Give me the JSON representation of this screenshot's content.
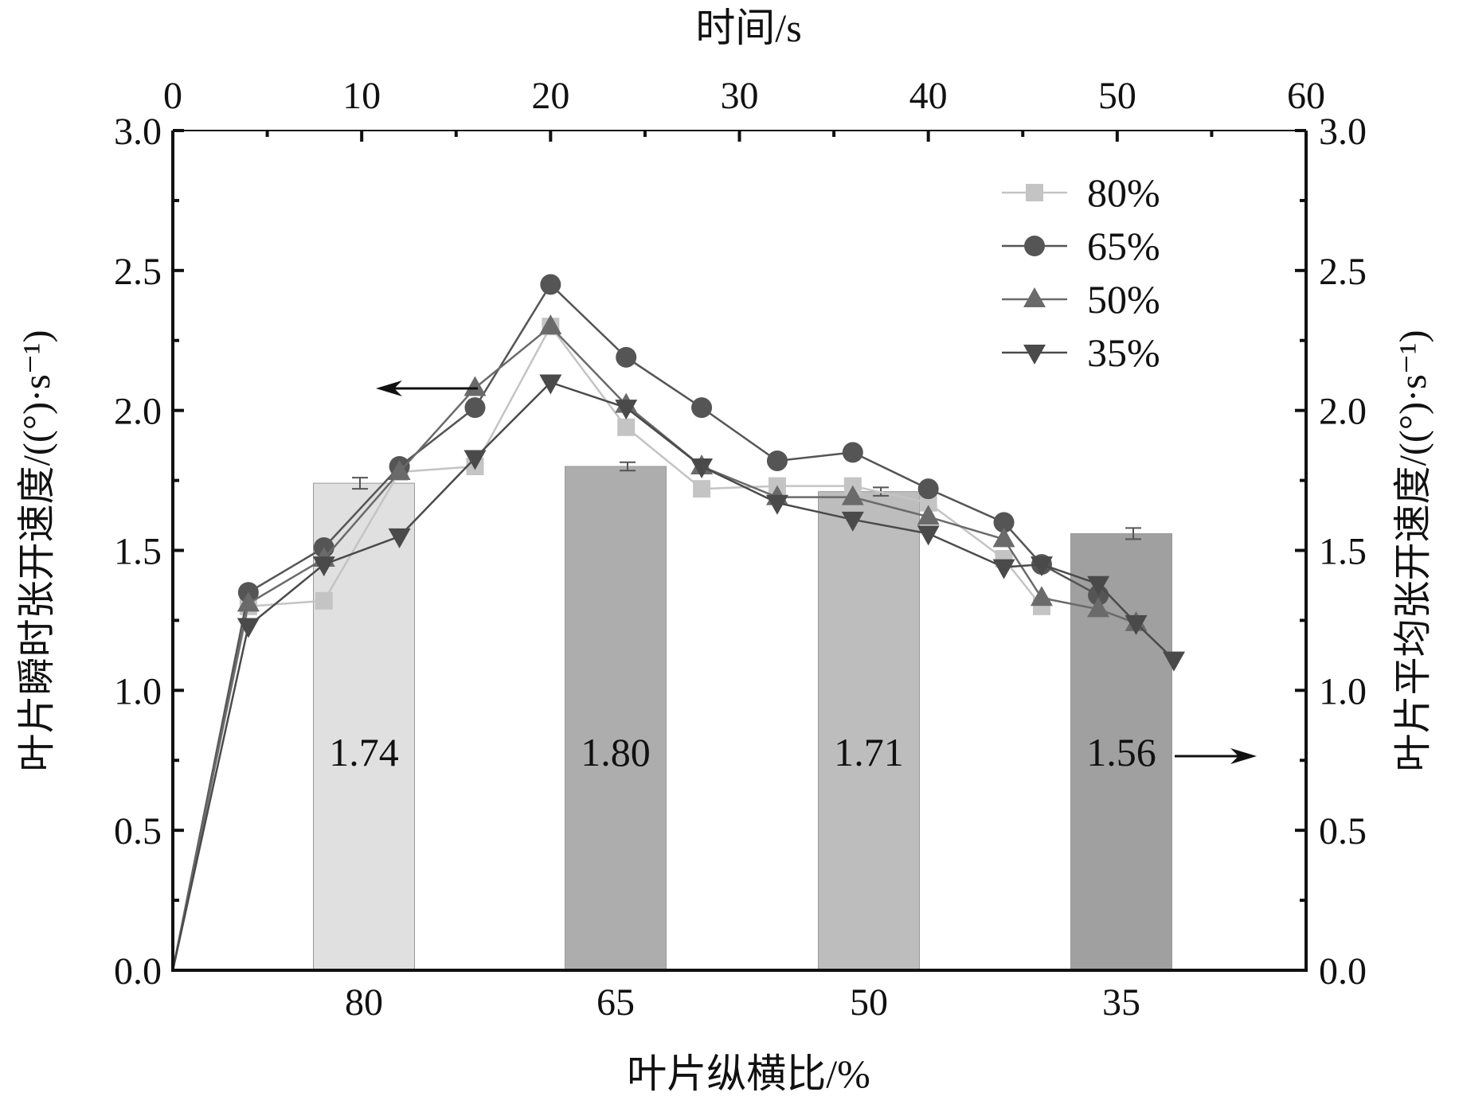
{
  "chart_data": {
    "type": "line+bar",
    "top_xlabel": "时间/s",
    "top_x_ticks": [
      0,
      10,
      20,
      30,
      40,
      50,
      60
    ],
    "xlim_time": [
      0,
      60
    ],
    "left_ylabel": "叶片瞬时张开速度/((°)·s⁻¹)",
    "right_ylabel": "叶片平均张开速度/((°)·s⁻¹)",
    "ylim": [
      0,
      3.0
    ],
    "y_ticks": [
      "0.0",
      "0.5",
      "1.0",
      "1.5",
      "2.0",
      "2.5",
      "3.0"
    ],
    "bottom_xlabel": "叶片纵横比/%",
    "legend_position": "top-right",
    "series": [
      {
        "name": "80%",
        "marker": "square",
        "color": "#c4c4c4",
        "x": [
          0,
          4,
          8,
          12,
          16,
          20,
          24,
          28,
          32,
          36,
          40,
          44,
          46
        ],
        "values": [
          0,
          1.3,
          1.32,
          1.78,
          1.8,
          2.3,
          1.94,
          1.72,
          1.73,
          1.73,
          1.67,
          1.47,
          1.3
        ]
      },
      {
        "name": "65%",
        "marker": "circle",
        "color": "#555555",
        "x": [
          0,
          4,
          8,
          12,
          16,
          20,
          24,
          28,
          32,
          36,
          40,
          44,
          46,
          49
        ],
        "values": [
          0,
          1.35,
          1.51,
          1.8,
          2.01,
          2.45,
          2.19,
          2.01,
          1.82,
          1.85,
          1.72,
          1.6,
          1.45,
          1.34
        ]
      },
      {
        "name": "50%",
        "marker": "triangle-up",
        "color": "#6a6a6a",
        "x": [
          0,
          4,
          8,
          12,
          16,
          20,
          24,
          28,
          32,
          36,
          40,
          44,
          46,
          49,
          51
        ],
        "values": [
          0,
          1.31,
          1.47,
          1.78,
          2.08,
          2.3,
          2.02,
          1.8,
          1.69,
          1.69,
          1.62,
          1.54,
          1.33,
          1.29,
          1.24
        ]
      },
      {
        "name": "35%",
        "marker": "triangle-down",
        "color": "#4a4a4a",
        "x": [
          0,
          4,
          8,
          12,
          16,
          20,
          24,
          28,
          32,
          36,
          40,
          44,
          46,
          49,
          51,
          53
        ],
        "values": [
          0,
          1.23,
          1.45,
          1.55,
          1.83,
          2.1,
          2.01,
          1.8,
          1.67,
          1.61,
          1.56,
          1.44,
          1.45,
          1.38,
          1.24,
          1.11
        ]
      }
    ],
    "bars": {
      "categories": [
        "80",
        "65",
        "50",
        "35"
      ],
      "values": [
        1.74,
        1.8,
        1.71,
        1.56
      ],
      "labels": [
        "1.74",
        "1.80",
        "1.71",
        "1.56"
      ],
      "errors": [
        0.02,
        0.015,
        0.015,
        0.02
      ],
      "colors": [
        "#e0e0e0",
        "#adadad",
        "#bdbdbd",
        "#a0a0a0"
      ]
    }
  }
}
